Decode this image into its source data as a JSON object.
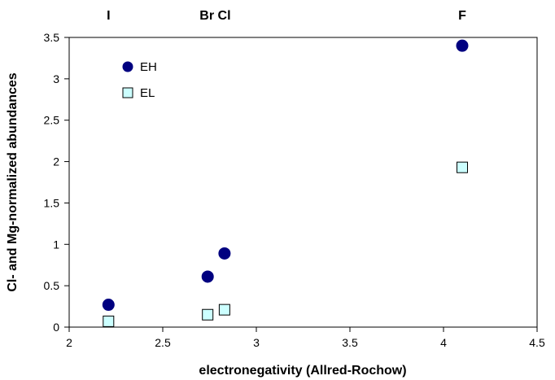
{
  "chart_data": {
    "type": "scatter",
    "title": "",
    "xlabel": "electronegativity (Allred-Rochow)",
    "ylabel": "Cl- and Mg-normalized abundances",
    "xlim": [
      2,
      4.5
    ],
    "ylim": [
      0,
      3.5
    ],
    "x_ticks": [
      "2",
      "2.5",
      "3",
      "3.5",
      "4",
      "4.5"
    ],
    "y_ticks": [
      "0",
      "0.5",
      "1",
      "1.5",
      "2",
      "2.5",
      "3",
      "3.5"
    ],
    "grid": false,
    "legend_position": "top-left",
    "element_labels": [
      {
        "text": "I",
        "x": 2.21
      },
      {
        "text": "Br Cl",
        "x": 2.78
      },
      {
        "text": "F",
        "x": 4.1
      }
    ],
    "series": [
      {
        "name": "EH",
        "marker": "circle",
        "color": "#000080",
        "points": [
          {
            "x": 2.21,
            "y": 0.27
          },
          {
            "x": 2.74,
            "y": 0.61
          },
          {
            "x": 2.83,
            "y": 0.89
          },
          {
            "x": 4.1,
            "y": 3.4
          }
        ]
      },
      {
        "name": "EL",
        "marker": "square",
        "color": "#ccffff",
        "points": [
          {
            "x": 2.21,
            "y": 0.07
          },
          {
            "x": 2.74,
            "y": 0.15
          },
          {
            "x": 2.83,
            "y": 0.21
          },
          {
            "x": 4.1,
            "y": 1.93
          }
        ]
      }
    ]
  }
}
